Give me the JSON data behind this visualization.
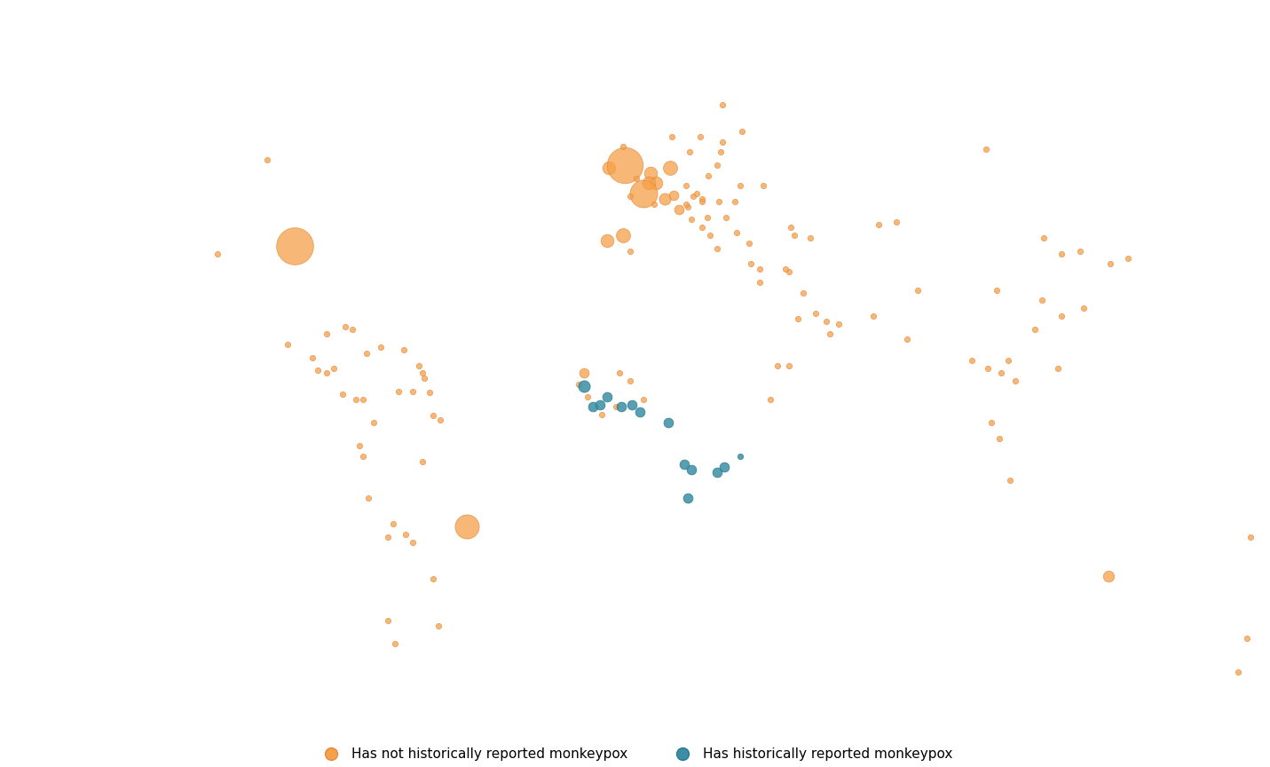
{
  "background_color": "#ffffff",
  "land_color": "#d4d4d4",
  "border_color": "#ffffff",
  "ocean_color": "#ffffff",
  "orange_fill": "#F5A04A",
  "orange_edge": "#E8893A",
  "blue_fill": "#3B8EA5",
  "blue_edge": "#2A7A90",
  "legend_orange": "Has not historically reported monkeypox",
  "legend_blue": "Has historically reported monkeypox",
  "orange_points": [
    {
      "lon": -105.0,
      "lat": 55.0,
      "size": 20
    },
    {
      "lon": -119.0,
      "lat": 37.0,
      "size": 20
    },
    {
      "lon": -99.0,
      "lat": 19.5,
      "size": 20
    },
    {
      "lon": -97.0,
      "lat": 38.5,
      "size": 900
    },
    {
      "lon": -79.5,
      "lat": 9.0,
      "size": 20
    },
    {
      "lon": -66.0,
      "lat": 18.5,
      "size": 20
    },
    {
      "lon": -61.5,
      "lat": 15.5,
      "size": 20
    },
    {
      "lon": -60.5,
      "lat": 14.0,
      "size": 20
    },
    {
      "lon": -60.0,
      "lat": 13.0,
      "size": 20
    },
    {
      "lon": -58.5,
      "lat": 10.3,
      "size": 20
    },
    {
      "lon": -57.5,
      "lat": 5.8,
      "size": 20
    },
    {
      "lon": -63.5,
      "lat": 10.5,
      "size": 20
    },
    {
      "lon": -72.5,
      "lat": 19.0,
      "size": 20
    },
    {
      "lon": -76.5,
      "lat": 17.8,
      "size": 20
    },
    {
      "lon": -77.5,
      "lat": 9.0,
      "size": 20
    },
    {
      "lon": -78.5,
      "lat": 0.0,
      "size": 20
    },
    {
      "lon": -74.5,
      "lat": 4.5,
      "size": 20
    },
    {
      "lon": -67.5,
      "lat": 10.5,
      "size": 20
    },
    {
      "lon": -69.0,
      "lat": -15.0,
      "size": 20
    },
    {
      "lon": -65.5,
      "lat": -17.0,
      "size": 20
    },
    {
      "lon": -63.5,
      "lat": -18.5,
      "size": 20
    },
    {
      "lon": -60.5,
      "lat": -3.0,
      "size": 20
    },
    {
      "lon": -55.5,
      "lat": 5.0,
      "size": 20
    },
    {
      "lon": -48.0,
      "lat": -15.5,
      "size": 380
    },
    {
      "lon": -68.5,
      "lat": -38.0,
      "size": 20
    },
    {
      "lon": -57.5,
      "lat": -25.5,
      "size": 20
    },
    {
      "lon": -56.0,
      "lat": -34.5,
      "size": 20
    },
    {
      "lon": -70.5,
      "lat": -33.5,
      "size": 20
    },
    {
      "lon": -70.5,
      "lat": -17.5,
      "size": 20
    },
    {
      "lon": -76.0,
      "lat": -10.0,
      "size": 20
    },
    {
      "lon": -77.5,
      "lat": -2.0,
      "size": 20
    },
    {
      "lon": -83.5,
      "lat": 10.0,
      "size": 20
    },
    {
      "lon": -86.0,
      "lat": 15.0,
      "size": 20
    },
    {
      "lon": -88.0,
      "lat": 14.0,
      "size": 20
    },
    {
      "lon": -90.5,
      "lat": 14.5,
      "size": 20
    },
    {
      "lon": -92.0,
      "lat": 17.0,
      "size": 20
    },
    {
      "lon": -88.0,
      "lat": 21.5,
      "size": 20
    },
    {
      "lon": -80.5,
      "lat": 22.5,
      "size": 20
    },
    {
      "lon": -82.5,
      "lat": 23.0,
      "size": 20
    },
    {
      "lon": -14.5,
      "lat": 14.0,
      "size": 60
    },
    {
      "lon": -16.0,
      "lat": 11.8,
      "size": 20
    },
    {
      "lon": -13.5,
      "lat": 9.5,
      "size": 20
    },
    {
      "lon": -9.5,
      "lat": 6.0,
      "size": 20
    },
    {
      "lon": -5.5,
      "lat": 7.5,
      "size": 20
    },
    {
      "lon": -4.5,
      "lat": 14.0,
      "size": 20
    },
    {
      "lon": -1.5,
      "lat": 12.5,
      "size": 20
    },
    {
      "lon": 2.5,
      "lat": 9.0,
      "size": 20
    },
    {
      "lon": 38.5,
      "lat": 9.0,
      "size": 20
    },
    {
      "lon": 40.5,
      "lat": 15.5,
      "size": 20
    },
    {
      "lon": 44.0,
      "lat": 15.5,
      "size": 20
    },
    {
      "lon": 46.5,
      "lat": 24.5,
      "size": 20
    },
    {
      "lon": 44.0,
      "lat": 33.5,
      "size": 20
    },
    {
      "lon": 43.0,
      "lat": 34.0,
      "size": 20
    },
    {
      "lon": 48.0,
      "lat": 29.5,
      "size": 20
    },
    {
      "lon": 51.5,
      "lat": 25.5,
      "size": 20
    },
    {
      "lon": 54.5,
      "lat": 24.0,
      "size": 20
    },
    {
      "lon": 58.0,
      "lat": 23.5,
      "size": 20
    },
    {
      "lon": 55.5,
      "lat": 21.5,
      "size": 20
    },
    {
      "lon": 35.5,
      "lat": 31.5,
      "size": 20
    },
    {
      "lon": 35.5,
      "lat": 34.0,
      "size": 20
    },
    {
      "lon": 33.0,
      "lat": 35.0,
      "size": 20
    },
    {
      "lon": 29.0,
      "lat": 41.0,
      "size": 20
    },
    {
      "lon": 32.5,
      "lat": 39.0,
      "size": 20
    },
    {
      "lon": 45.5,
      "lat": 40.5,
      "size": 20
    },
    {
      "lon": 50.0,
      "lat": 40.0,
      "size": 20
    },
    {
      "lon": 44.5,
      "lat": 42.0,
      "size": 20
    },
    {
      "lon": 74.5,
      "lat": 43.0,
      "size": 20
    },
    {
      "lon": 69.5,
      "lat": 42.5,
      "size": 20
    },
    {
      "lon": 80.5,
      "lat": 30.0,
      "size": 20
    },
    {
      "lon": 77.5,
      "lat": 20.5,
      "size": 20
    },
    {
      "lon": 106.5,
      "lat": 16.5,
      "size": 20
    },
    {
      "lon": 104.5,
      "lat": 14.0,
      "size": 20
    },
    {
      "lon": 101.5,
      "lat": 4.5,
      "size": 20
    },
    {
      "lon": 103.8,
      "lat": 1.5,
      "size": 20
    },
    {
      "lon": 106.8,
      "lat": -6.5,
      "size": 20
    },
    {
      "lon": 108.5,
      "lat": 12.5,
      "size": 20
    },
    {
      "lon": 120.5,
      "lat": 15.0,
      "size": 20
    },
    {
      "lon": 121.5,
      "lat": 25.0,
      "size": 20
    },
    {
      "lon": 114.0,
      "lat": 22.5,
      "size": 20
    },
    {
      "lon": 103.0,
      "lat": 30.0,
      "size": 20
    },
    {
      "lon": 116.5,
      "lat": 40.0,
      "size": 20
    },
    {
      "lon": 121.5,
      "lat": 37.0,
      "size": 20
    },
    {
      "lon": 127.0,
      "lat": 37.5,
      "size": 20
    },
    {
      "lon": 128.0,
      "lat": 26.5,
      "size": 20
    },
    {
      "lon": 135.5,
      "lat": 35.0,
      "size": 20
    },
    {
      "lon": 140.5,
      "lat": 36.0,
      "size": 20
    },
    {
      "lon": 135.0,
      "lat": -25.0,
      "size": 80
    },
    {
      "lon": 174.5,
      "lat": -37.0,
      "size": 20
    },
    {
      "lon": 172.0,
      "lat": -43.5,
      "size": 20
    },
    {
      "lon": 25.0,
      "lat": 58.5,
      "size": 20
    },
    {
      "lon": 24.5,
      "lat": 56.5,
      "size": 20
    },
    {
      "lon": 23.5,
      "lat": 54.0,
      "size": 20
    },
    {
      "lon": 21.0,
      "lat": 52.0,
      "size": 20
    },
    {
      "lon": 18.5,
      "lat": 59.5,
      "size": 20
    },
    {
      "lon": 10.5,
      "lat": 59.5,
      "size": 20
    },
    {
      "lon": 15.5,
      "lat": 56.5,
      "size": 20
    },
    {
      "lon": 19.0,
      "lat": 47.5,
      "size": 20
    },
    {
      "lon": 16.5,
      "lat": 48.0,
      "size": 20
    },
    {
      "lon": 14.5,
      "lat": 50.0,
      "size": 20
    },
    {
      "lon": 17.5,
      "lat": 48.5,
      "size": 20
    },
    {
      "lon": 19.0,
      "lat": 47.0,
      "size": 20
    },
    {
      "lon": 20.5,
      "lat": 44.0,
      "size": 20
    },
    {
      "lon": 15.0,
      "lat": 46.0,
      "size": 20
    },
    {
      "lon": 14.5,
      "lat": 46.5,
      "size": 20
    },
    {
      "lon": 12.5,
      "lat": 45.5,
      "size": 60
    },
    {
      "lon": 16.0,
      "lat": 43.5,
      "size": 20
    },
    {
      "lon": 19.0,
      "lat": 42.0,
      "size": 20
    },
    {
      "lon": 21.5,
      "lat": 40.5,
      "size": 20
    },
    {
      "lon": 23.5,
      "lat": 38.0,
      "size": 20
    },
    {
      "lon": 11.0,
      "lat": 48.2,
      "size": 60
    },
    {
      "lon": 10.0,
      "lat": 53.5,
      "size": 130
    },
    {
      "lon": 8.5,
      "lat": 47.5,
      "size": 90
    },
    {
      "lon": 6.0,
      "lat": 50.5,
      "size": 110
    },
    {
      "lon": 4.5,
      "lat": 52.5,
      "size": 110
    },
    {
      "lon": 4.0,
      "lat": 50.5,
      "size": 110
    },
    {
      "lon": 2.5,
      "lat": 48.5,
      "size": 500
    },
    {
      "lon": 5.5,
      "lat": 46.5,
      "size": 20
    },
    {
      "lon": -3.5,
      "lat": 40.5,
      "size": 130
    },
    {
      "lon": -8.0,
      "lat": 39.5,
      "size": 110
    },
    {
      "lon": -1.5,
      "lat": 37.5,
      "size": 20
    },
    {
      "lon": -7.5,
      "lat": 53.5,
      "size": 110
    },
    {
      "lon": -3.0,
      "lat": 54.0,
      "size": 850
    },
    {
      "lon": -1.5,
      "lat": 48.0,
      "size": 20
    },
    {
      "lon": 0.5,
      "lat": 51.5,
      "size": 20
    },
    {
      "lon": -3.5,
      "lat": 57.5,
      "size": 20
    },
    {
      "lon": 26.0,
      "lat": 44.0,
      "size": 20
    },
    {
      "lon": 28.5,
      "lat": 47.0,
      "size": 20
    },
    {
      "lon": 24.0,
      "lat": 47.0,
      "size": 20
    },
    {
      "lon": 30.0,
      "lat": 50.0,
      "size": 20
    },
    {
      "lon": 36.5,
      "lat": 50.0,
      "size": 20
    },
    {
      "lon": 30.5,
      "lat": 60.5,
      "size": 20
    },
    {
      "lon": 25.0,
      "lat": 65.5,
      "size": 20
    },
    {
      "lon": 68.0,
      "lat": 25.0,
      "size": 20
    },
    {
      "lon": 100.5,
      "lat": 15.0,
      "size": 20
    },
    {
      "lon": 96.0,
      "lat": 16.5,
      "size": 20
    },
    {
      "lon": 175.5,
      "lat": -17.5,
      "size": 20
    },
    {
      "lon": 116.0,
      "lat": 28.0,
      "size": 20
    },
    {
      "lon": 100.0,
      "lat": 57.0,
      "size": 20
    }
  ],
  "blue_points": [
    {
      "lon": -14.5,
      "lat": 11.5,
      "size": 90
    },
    {
      "lon": -12.0,
      "lat": 7.5,
      "size": 60
    },
    {
      "lon": -10.0,
      "lat": 8.0,
      "size": 60
    },
    {
      "lon": -8.0,
      "lat": 9.5,
      "size": 60
    },
    {
      "lon": -4.0,
      "lat": 7.5,
      "size": 60
    },
    {
      "lon": -1.0,
      "lat": 8.0,
      "size": 60
    },
    {
      "lon": 1.5,
      "lat": 6.5,
      "size": 60
    },
    {
      "lon": 9.5,
      "lat": 4.5,
      "size": 60
    },
    {
      "lon": 14.0,
      "lat": -3.5,
      "size": 60
    },
    {
      "lon": 16.0,
      "lat": -4.5,
      "size": 60
    },
    {
      "lon": 15.0,
      "lat": -10.0,
      "size": 60
    },
    {
      "lon": 23.5,
      "lat": -5.0,
      "size": 60
    },
    {
      "lon": 25.5,
      "lat": -4.0,
      "size": 60
    },
    {
      "lon": 30.0,
      "lat": -2.0,
      "size": 20
    }
  ]
}
